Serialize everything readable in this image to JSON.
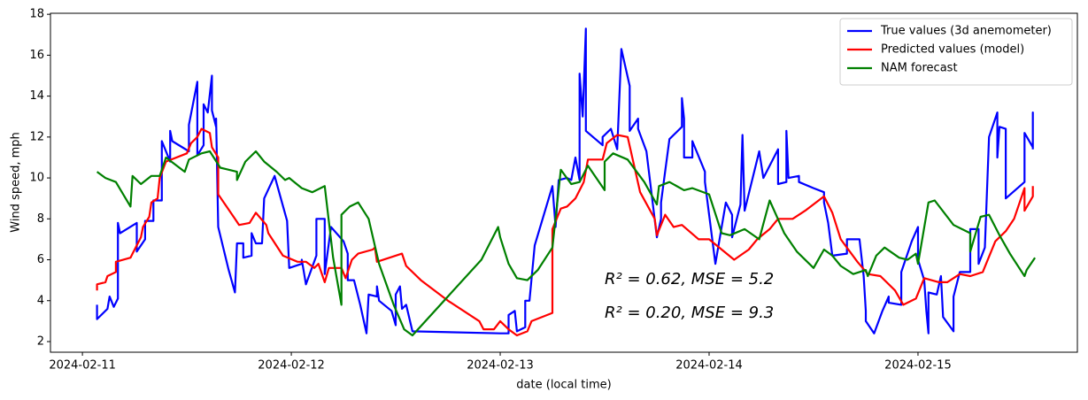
{
  "chart_data": {
    "type": "line",
    "xlabel": "date (local time)",
    "ylabel": "Wind speed, mph",
    "xlim": [
      -0.153,
      4.763
    ],
    "ylim": [
      1.48,
      18.05
    ],
    "xticks": [
      {
        "value": 0,
        "label": "2024-02-11"
      },
      {
        "value": 1,
        "label": "2024-02-12"
      },
      {
        "value": 2,
        "label": "2024-02-13"
      },
      {
        "value": 3,
        "label": "2024-02-14"
      },
      {
        "value": 4,
        "label": "2024-02-15"
      }
    ],
    "yticks": [
      2,
      4,
      6,
      8,
      10,
      12,
      14,
      16,
      18
    ],
    "grid": false,
    "legend": "upper right",
    "annotations": [
      {
        "text": "R² = 0.62, MSE = 5.2",
        "color": "#ff0000"
      },
      {
        "text": "R² = 0.20, MSE = 9.3",
        "color": "#008000"
      }
    ],
    "series": [
      {
        "name": "True values (3d anemometer)",
        "color": "#0000ff",
        "x": [
          0.07,
          0.07,
          0.12,
          0.13,
          0.15,
          0.17,
          0.17,
          0.18,
          0.26,
          0.26,
          0.3,
          0.3,
          0.34,
          0.34,
          0.38,
          0.38,
          0.42,
          0.42,
          0.43,
          0.51,
          0.51,
          0.55,
          0.55,
          0.58,
          0.58,
          0.6,
          0.62,
          0.62,
          0.64,
          0.64,
          0.65,
          0.7,
          0.73,
          0.74,
          0.77,
          0.77,
          0.81,
          0.81,
          0.83,
          0.86,
          0.87,
          0.92,
          0.98,
          0.99,
          1.05,
          1.05,
          1.07,
          1.12,
          1.12,
          1.16,
          1.16,
          1.19,
          1.25,
          1.27,
          1.27,
          1.3,
          1.33,
          1.36,
          1.37,
          1.41,
          1.41,
          1.42,
          1.48,
          1.5,
          1.5,
          1.52,
          1.53,
          1.55,
          1.58,
          2.0,
          2.04,
          2.04,
          2.07,
          2.08,
          2.12,
          2.12,
          2.14,
          2.165,
          2.25,
          2.265,
          2.28,
          2.32,
          2.34,
          2.36,
          2.38,
          2.38,
          2.395,
          2.41,
          2.41,
          2.49,
          2.49,
          2.53,
          2.56,
          2.58,
          2.62,
          2.62,
          2.66,
          2.66,
          2.7,
          2.75,
          2.77,
          2.77,
          2.81,
          2.87,
          2.87,
          2.88,
          2.88,
          2.92,
          2.92,
          2.98,
          2.98,
          3.03,
          3.08,
          3.11,
          3.11,
          3.15,
          3.16,
          3.17,
          3.24,
          3.26,
          3.33,
          3.33,
          3.37,
          3.37,
          3.38,
          3.43,
          3.43,
          3.5,
          3.55,
          3.55,
          3.57,
          3.59,
          3.66,
          3.66,
          3.72,
          3.74,
          3.75,
          3.75,
          3.79,
          3.83,
          3.86,
          3.86,
          3.92,
          3.92,
          3.97,
          4.0,
          4.0,
          4.03,
          4.04,
          4.05,
          4.05,
          4.09,
          4.11,
          4.12,
          4.17,
          4.17,
          4.2,
          4.25,
          4.25,
          4.29,
          4.29,
          4.32,
          4.34,
          4.38,
          4.38,
          4.39,
          4.42,
          4.42,
          4.51,
          4.51,
          4.55,
          4.55,
          4.55
        ],
        "values": [
          3.8,
          3.1,
          3.6,
          4.2,
          3.7,
          4.1,
          7.8,
          7.3,
          7.8,
          6.4,
          7.0,
          7.9,
          7.9,
          8.9,
          8.9,
          11.8,
          10.8,
          12.3,
          11.8,
          11.3,
          12.6,
          14.7,
          11.1,
          11.6,
          13.6,
          13.2,
          15.0,
          13.3,
          12.5,
          12.9,
          7.6,
          5.5,
          4.4,
          6.8,
          6.8,
          6.1,
          6.2,
          7.3,
          6.8,
          6.8,
          9.0,
          10.1,
          7.9,
          5.6,
          5.8,
          6.0,
          4.8,
          6.2,
          8.0,
          8.0,
          5.3,
          7.6,
          6.9,
          6.3,
          5.0,
          5.0,
          3.8,
          2.4,
          4.3,
          4.2,
          4.7,
          4.0,
          3.5,
          2.8,
          4.3,
          4.7,
          3.6,
          3.8,
          2.5,
          2.4,
          2.4,
          3.3,
          3.5,
          2.5,
          2.7,
          4.0,
          4.0,
          6.7,
          9.6,
          7.6,
          9.9,
          10.0,
          9.9,
          11.0,
          9.9,
          15.1,
          13.0,
          17.3,
          12.3,
          11.6,
          12.0,
          12.4,
          11.4,
          16.3,
          14.5,
          12.3,
          12.9,
          12.4,
          11.3,
          7.1,
          8.0,
          8.8,
          11.9,
          12.5,
          13.9,
          12.9,
          11.0,
          11.0,
          11.8,
          10.3,
          9.8,
          5.8,
          8.8,
          8.2,
          7.1,
          8.7,
          12.1,
          8.4,
          11.3,
          10.0,
          11.4,
          9.7,
          9.8,
          12.3,
          10.0,
          10.1,
          9.8,
          9.5,
          9.3,
          8.8,
          7.8,
          6.2,
          6.3,
          7.0,
          7.0,
          5.2,
          3.5,
          3.0,
          2.4,
          3.5,
          4.2,
          3.9,
          3.8,
          5.4,
          6.9,
          7.6,
          6.0,
          5.0,
          3.5,
          2.4,
          4.4,
          4.3,
          5.2,
          3.2,
          2.5,
          4.2,
          5.4,
          5.4,
          7.5,
          7.5,
          5.8,
          6.6,
          12.0,
          13.2,
          11.0,
          12.5,
          12.4,
          9.0,
          9.8,
          12.2,
          11.5,
          13.2,
          11.4
        ]
      },
      {
        "name": "Predicted values (model)",
        "color": "#ff0000",
        "x": [
          0.07,
          0.07,
          0.11,
          0.12,
          0.16,
          0.16,
          0.23,
          0.24,
          0.28,
          0.29,
          0.32,
          0.33,
          0.36,
          0.37,
          0.4,
          0.5,
          0.52,
          0.55,
          0.57,
          0.61,
          0.62,
          0.65,
          0.65,
          0.73,
          0.75,
          0.8,
          0.83,
          0.88,
          0.89,
          0.96,
          1.03,
          1.07,
          1.11,
          1.13,
          1.16,
          1.18,
          1.24,
          1.26,
          1.29,
          1.32,
          1.39,
          1.4,
          1.41,
          1.47,
          1.53,
          1.55,
          1.62,
          1.75,
          1.9,
          1.92,
          1.97,
          2.0,
          2.04,
          2.08,
          2.13,
          2.15,
          2.25,
          2.25,
          2.29,
          2.32,
          2.36,
          2.4,
          2.42,
          2.49,
          2.51,
          2.56,
          2.61,
          2.67,
          2.74,
          2.75,
          2.79,
          2.83,
          2.87,
          2.95,
          3.0,
          3.12,
          3.19,
          3.23,
          3.29,
          3.33,
          3.4,
          3.46,
          3.55,
          3.59,
          3.63,
          3.71,
          3.76,
          3.82,
          3.89,
          3.93,
          3.99,
          4.03,
          4.1,
          4.14,
          4.2,
          4.25,
          4.31,
          4.37,
          4.42,
          4.46,
          4.51,
          4.51,
          4.55,
          4.55
        ],
        "values": [
          4.5,
          4.8,
          4.9,
          5.2,
          5.4,
          5.9,
          6.1,
          6.3,
          7.1,
          7.6,
          8.1,
          8.8,
          9.0,
          10.0,
          10.8,
          11.2,
          11.7,
          12.0,
          12.4,
          12.2,
          11.5,
          11.0,
          9.2,
          8.0,
          7.7,
          7.8,
          8.3,
          7.7,
          7.3,
          6.2,
          5.9,
          5.9,
          5.6,
          5.8,
          4.9,
          5.6,
          5.6,
          5.1,
          6.0,
          6.3,
          6.5,
          6.6,
          5.9,
          6.1,
          6.3,
          5.7,
          5.0,
          4.0,
          3.0,
          2.6,
          2.6,
          3.0,
          2.6,
          2.3,
          2.5,
          3.0,
          3.4,
          7.5,
          8.5,
          8.6,
          9.0,
          9.8,
          10.9,
          10.9,
          11.7,
          12.1,
          12.0,
          9.3,
          8.0,
          7.2,
          8.2,
          7.6,
          7.7,
          7.0,
          7.0,
          6.0,
          6.5,
          7.0,
          7.5,
          8.0,
          8.0,
          8.4,
          9.1,
          8.3,
          7.0,
          5.9,
          5.3,
          5.2,
          4.5,
          3.8,
          4.1,
          5.1,
          4.9,
          4.9,
          5.3,
          5.2,
          5.4,
          6.9,
          7.4,
          8.0,
          9.5,
          8.4,
          9.1,
          9.6
        ]
      },
      {
        "name": "NAM forecast",
        "color": "#008000",
        "x": [
          0.07,
          0.11,
          0.16,
          0.23,
          0.24,
          0.28,
          0.33,
          0.37,
          0.4,
          0.49,
          0.51,
          0.57,
          0.61,
          0.66,
          0.74,
          0.74,
          0.78,
          0.83,
          0.87,
          0.93,
          0.97,
          0.99,
          1.05,
          1.1,
          1.16,
          1.2,
          1.24,
          1.24,
          1.28,
          1.32,
          1.37,
          1.42,
          1.49,
          1.54,
          1.58,
          1.91,
          1.99,
          2.0,
          2.04,
          2.08,
          2.13,
          2.18,
          2.25,
          2.29,
          2.34,
          2.38,
          2.42,
          2.5,
          2.5,
          2.54,
          2.61,
          2.69,
          2.75,
          2.76,
          2.81,
          2.88,
          2.92,
          3.0,
          3.06,
          3.1,
          3.17,
          3.24,
          3.29,
          3.36,
          3.42,
          3.5,
          3.55,
          3.59,
          3.63,
          3.69,
          3.75,
          3.76,
          3.8,
          3.84,
          3.91,
          3.95,
          3.99,
          4.0,
          4.05,
          4.08,
          4.17,
          4.25,
          4.25,
          4.3,
          4.34,
          4.39,
          4.44,
          4.51,
          4.52,
          4.56
        ],
        "values": [
          10.3,
          10.0,
          9.8,
          8.6,
          10.1,
          9.7,
          10.1,
          10.1,
          11.0,
          10.3,
          10.9,
          11.2,
          11.3,
          10.5,
          10.3,
          9.9,
          10.8,
          11.3,
          10.8,
          10.3,
          9.9,
          10.0,
          9.5,
          9.3,
          9.6,
          6.1,
          3.8,
          8.2,
          8.6,
          8.8,
          8.0,
          5.8,
          3.8,
          2.6,
          2.3,
          6.0,
          7.6,
          7.1,
          5.8,
          5.1,
          5.0,
          5.5,
          6.6,
          10.4,
          9.7,
          9.8,
          10.6,
          9.4,
          10.8,
          11.2,
          10.9,
          9.8,
          8.7,
          9.6,
          9.8,
          9.4,
          9.5,
          9.2,
          7.3,
          7.2,
          7.5,
          7.0,
          8.9,
          7.3,
          6.4,
          5.6,
          6.5,
          6.2,
          5.7,
          5.3,
          5.5,
          5.2,
          6.2,
          6.6,
          6.1,
          6.0,
          6.3,
          5.8,
          8.8,
          8.9,
          7.7,
          7.3,
          6.4,
          8.1,
          8.2,
          7.2,
          6.3,
          5.2,
          5.5,
          6.1
        ]
      }
    ]
  }
}
